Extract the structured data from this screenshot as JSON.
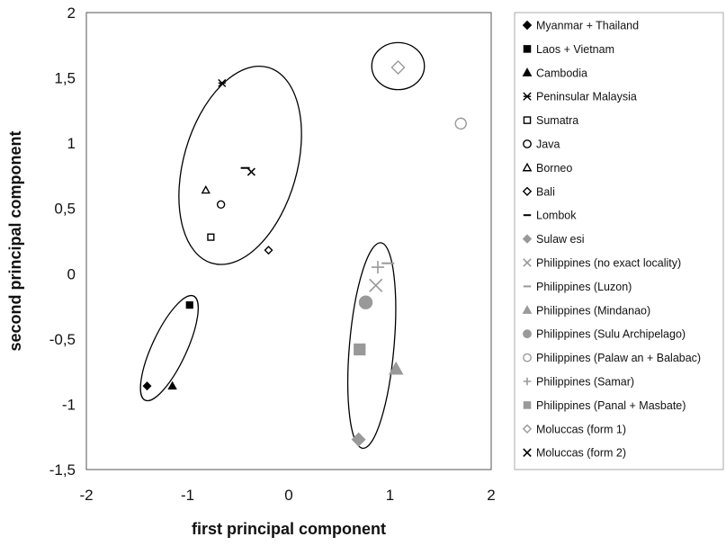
{
  "chart_data": {
    "type": "scatter",
    "title": "",
    "xlabel": "first principal component",
    "ylabel": "second principal component",
    "xlim": [
      -2,
      2
    ],
    "ylim": [
      -1.5,
      2
    ],
    "xticks": [
      "-2",
      "-1",
      "0",
      "1",
      "2"
    ],
    "yticks": [
      "2",
      "1,5",
      "1",
      "0,5",
      "0",
      "-0,5",
      "-1",
      "-1,5"
    ],
    "grid": false,
    "legend_position": "right",
    "series": [
      {
        "name": "Myanmar + Thailand",
        "marker": "diamond",
        "fill": "filled",
        "color": "#000000",
        "points": [
          [
            -1.4,
            -0.86
          ]
        ]
      },
      {
        "name": "Laos + Vietnam",
        "marker": "square",
        "fill": "filled",
        "color": "#000000",
        "points": [
          [
            -0.98,
            -0.24
          ]
        ]
      },
      {
        "name": "Cambodia",
        "marker": "triangle",
        "fill": "filled",
        "color": "#000000",
        "points": [
          [
            -1.15,
            -0.86
          ]
        ]
      },
      {
        "name": "Peninsular Malaysia",
        "marker": "asterisk",
        "fill": "line",
        "color": "#000000",
        "points": [
          [
            -0.66,
            1.46
          ]
        ]
      },
      {
        "name": "Sumatra",
        "marker": "square",
        "fill": "open",
        "color": "#000000",
        "points": [
          [
            -0.77,
            0.28
          ]
        ]
      },
      {
        "name": "Java",
        "marker": "circle",
        "fill": "open",
        "color": "#000000",
        "points": [
          [
            -0.67,
            0.53
          ]
        ]
      },
      {
        "name": "Borneo",
        "marker": "triangle",
        "fill": "open",
        "color": "#000000",
        "points": [
          [
            -0.82,
            0.64
          ]
        ]
      },
      {
        "name": "Bali",
        "marker": "diamond",
        "fill": "open",
        "color": "#000000",
        "points": [
          [
            -0.2,
            0.18
          ]
        ]
      },
      {
        "name": "Lombok",
        "marker": "dash",
        "fill": "line",
        "color": "#000000",
        "points": [
          [
            -0.43,
            0.81
          ]
        ]
      },
      {
        "name": "Sulaw esi",
        "marker": "diamond",
        "fill": "filled",
        "color": "#999999",
        "points": [
          [
            0.69,
            -1.27
          ]
        ]
      },
      {
        "name": "Philippines (no exact locality)",
        "marker": "x",
        "fill": "line",
        "color": "#999999",
        "points": [
          [
            0.86,
            -0.09
          ]
        ]
      },
      {
        "name": "Philippines (Luzon)",
        "marker": "dash",
        "fill": "line",
        "color": "#999999",
        "points": [
          [
            0.98,
            0.08
          ]
        ]
      },
      {
        "name": "Philippines (Mindanao)",
        "marker": "triangle",
        "fill": "filled",
        "color": "#999999",
        "points": [
          [
            1.06,
            -0.73
          ]
        ]
      },
      {
        "name": "Philippines (Sulu Archipelago)",
        "marker": "circle",
        "fill": "filled",
        "color": "#999999",
        "points": [
          [
            0.76,
            -0.22
          ]
        ]
      },
      {
        "name": "Philippines (Palaw an + Balabac)",
        "marker": "circle",
        "fill": "open",
        "color": "#999999",
        "points": [
          [
            1.7,
            1.15
          ]
        ]
      },
      {
        "name": "Philippines (Samar)",
        "marker": "plus",
        "fill": "line",
        "color": "#999999",
        "points": [
          [
            0.88,
            0.05
          ]
        ]
      },
      {
        "name": "Philippines (Panal + Masbate)",
        "marker": "square",
        "fill": "filled",
        "color": "#999999",
        "points": [
          [
            0.7,
            -0.58
          ]
        ]
      },
      {
        "name": "Moluccas (form 1)",
        "marker": "diamond",
        "fill": "open",
        "color": "#999999",
        "points": [
          [
            1.08,
            1.58
          ]
        ]
      },
      {
        "name": "Moluccas (form 2)",
        "marker": "x",
        "fill": "line",
        "color": "#000000",
        "points": [
          [
            -0.37,
            0.78
          ]
        ]
      }
    ],
    "ellipses": [
      {
        "cx": -0.48,
        "cy": 0.83,
        "rx": 0.56,
        "ry": 0.78,
        "rotation_deg": 16
      },
      {
        "cx": -1.18,
        "cy": -0.57,
        "rx": 0.17,
        "ry": 0.44,
        "rotation_deg": 25
      },
      {
        "cx": 0.82,
        "cy": -0.55,
        "rx": 0.22,
        "ry": 0.79,
        "rotation_deg": 5
      },
      {
        "cx": 1.08,
        "cy": 1.59,
        "rx": 0.26,
        "ry": 0.18,
        "rotation_deg": 0
      }
    ]
  }
}
